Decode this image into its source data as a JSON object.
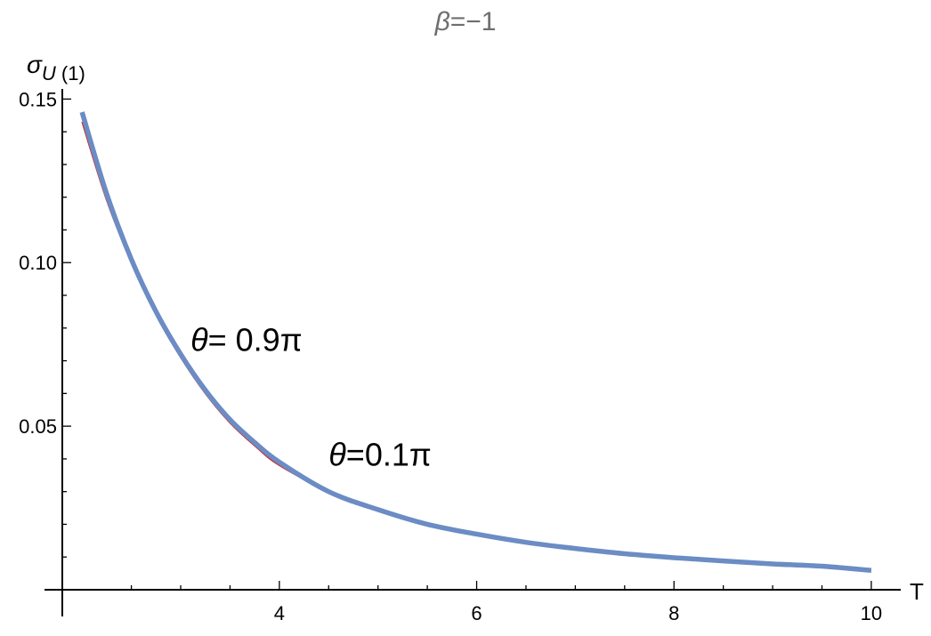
{
  "chart_data": {
    "type": "line",
    "title": "β=−1",
    "title_parts": {
      "symbol": "β",
      "rest": "=−1"
    },
    "xlabel": "T",
    "ylabel": "σU (1)",
    "ylabel_parts": {
      "symbol": "σ",
      "sub_var": "U",
      "sub_rest": " (1)"
    },
    "xlim": [
      1.8,
      10.1
    ],
    "ylim": [
      0,
      0.152
    ],
    "x_ticks": [
      4,
      6,
      8,
      10
    ],
    "x_tick_labels": [
      "4",
      "6",
      "8",
      "10"
    ],
    "y_ticks": [
      0.05,
      0.1,
      0.15
    ],
    "y_tick_labels": [
      "0.05",
      "0.10",
      "0.15"
    ],
    "grid": false,
    "legend": "none",
    "series": [
      {
        "color": "#c8302e",
        "x": [
          2.0,
          2.25,
          2.5,
          2.75,
          3.0,
          3.25,
          3.5,
          3.75,
          4.0,
          4.5,
          5.0,
          5.5,
          6.0,
          6.5,
          7.0,
          7.5,
          8.0,
          8.5,
          9.0,
          9.5,
          10.0
        ],
        "y": [
          0.143,
          0.119,
          0.1,
          0.084,
          0.071,
          0.06,
          0.051,
          0.044,
          0.038,
          0.03,
          0.024,
          0.02,
          0.017,
          0.0145,
          0.0125,
          0.011,
          0.0097,
          0.0087,
          0.0078,
          0.0071,
          0.0058
        ]
      },
      {
        "color": "#6b8cc4",
        "x": [
          2.0,
          2.25,
          2.5,
          2.75,
          3.0,
          3.25,
          3.5,
          3.75,
          4.0,
          4.5,
          5.0,
          5.5,
          6.0,
          6.5,
          7.0,
          7.5,
          8.0,
          8.5,
          9.0,
          9.5,
          10.0
        ],
        "y": [
          0.146,
          0.121,
          0.101,
          0.085,
          0.072,
          0.061,
          0.052,
          0.045,
          0.039,
          0.03,
          0.0245,
          0.02,
          0.017,
          0.0145,
          0.0126,
          0.011,
          0.0098,
          0.0088,
          0.0079,
          0.0072,
          0.0059
        ]
      }
    ],
    "annotations": [
      {
        "symbol": "θ",
        "rest": "= 0.9π",
        "x": 3.1,
        "y": 0.073
      },
      {
        "symbol": "θ",
        "rest": "=0.1π",
        "x": 4.5,
        "y": 0.038
      }
    ]
  }
}
